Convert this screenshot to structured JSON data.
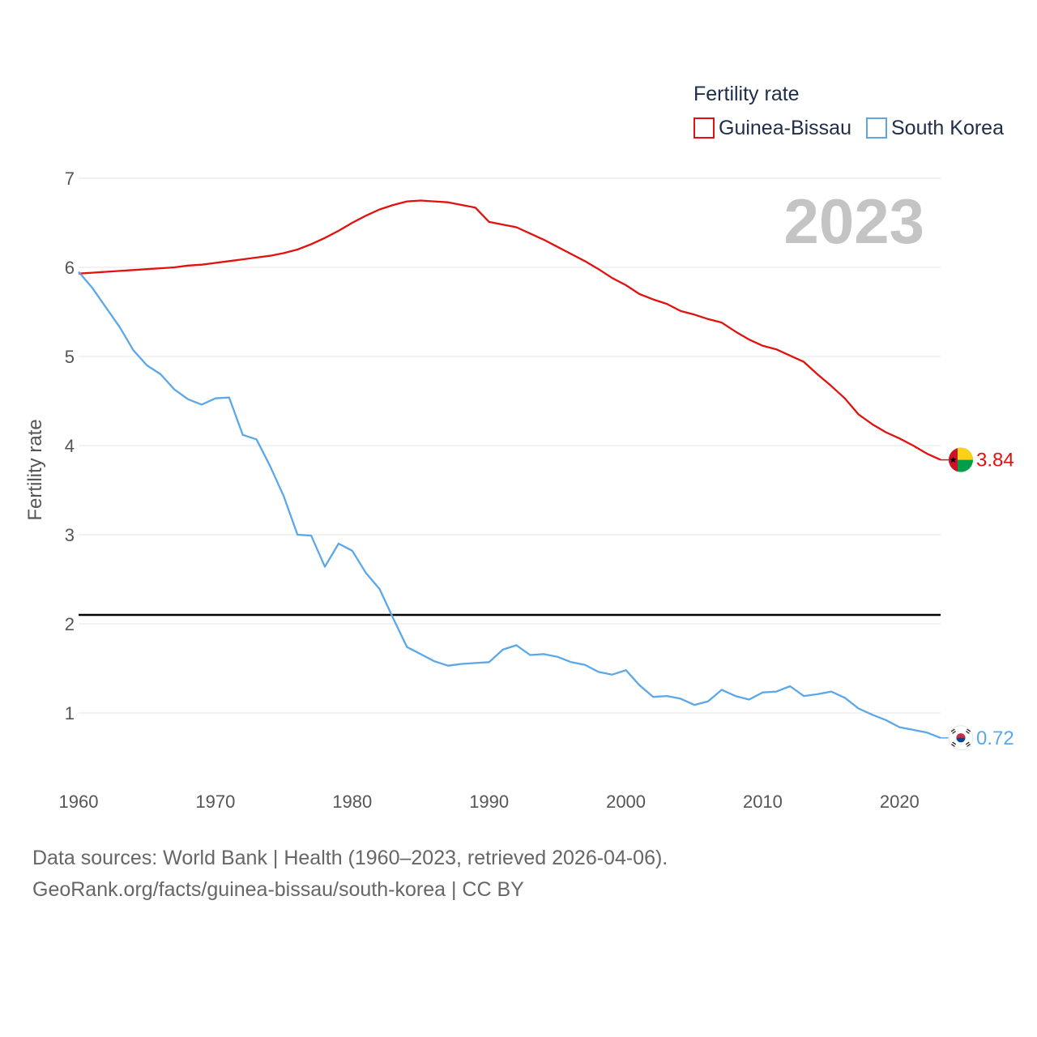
{
  "chart_data": {
    "type": "line",
    "title": "2023",
    "xlabel": "",
    "ylabel": "Fertility rate",
    "legend_title": "Fertility rate",
    "legend_position": "top-right",
    "xlim": [
      1960,
      2023
    ],
    "ylim": [
      0.3,
      7.2
    ],
    "x_ticks": [
      1960,
      1970,
      1980,
      1990,
      2000,
      2010,
      2020
    ],
    "y_ticks": [
      1,
      2,
      3,
      4,
      5,
      6,
      7
    ],
    "reference_line": {
      "y": 2.1,
      "color": "#000000"
    },
    "x": [
      1960,
      1961,
      1962,
      1963,
      1964,
      1965,
      1966,
      1967,
      1968,
      1969,
      1970,
      1971,
      1972,
      1973,
      1974,
      1975,
      1976,
      1977,
      1978,
      1979,
      1980,
      1981,
      1982,
      1983,
      1984,
      1985,
      1986,
      1987,
      1988,
      1989,
      1990,
      1991,
      1992,
      1993,
      1994,
      1995,
      1996,
      1997,
      1998,
      1999,
      2000,
      2001,
      2002,
      2003,
      2004,
      2005,
      2006,
      2007,
      2008,
      2009,
      2010,
      2011,
      2012,
      2013,
      2014,
      2015,
      2016,
      2017,
      2018,
      2019,
      2020,
      2021,
      2022,
      2023
    ],
    "series": [
      {
        "name": "Guinea-Bissau",
        "color": "#e3110e",
        "end_label": "3.84",
        "values": [
          5.93,
          5.94,
          5.95,
          5.96,
          5.97,
          5.98,
          5.99,
          6.0,
          6.02,
          6.03,
          6.05,
          6.07,
          6.09,
          6.11,
          6.13,
          6.16,
          6.2,
          6.26,
          6.33,
          6.41,
          6.5,
          6.58,
          6.65,
          6.7,
          6.74,
          6.75,
          6.74,
          6.73,
          6.7,
          6.67,
          6.51,
          6.48,
          6.45,
          6.38,
          6.31,
          6.23,
          6.15,
          6.07,
          5.98,
          5.88,
          5.8,
          5.7,
          5.64,
          5.59,
          5.51,
          5.47,
          5.42,
          5.38,
          5.28,
          5.19,
          5.12,
          5.08,
          5.01,
          4.94,
          4.8,
          4.67,
          4.53,
          4.35,
          4.24,
          4.15,
          4.08,
          4.0,
          3.91,
          3.84
        ]
      },
      {
        "name": "South Korea",
        "color": "#5ba8e8",
        "end_label": "0.72",
        "values": [
          5.95,
          5.77,
          5.55,
          5.33,
          5.07,
          4.9,
          4.8,
          4.63,
          4.52,
          4.46,
          4.53,
          4.54,
          4.12,
          4.07,
          3.77,
          3.43,
          3.0,
          2.99,
          2.64,
          2.9,
          2.82,
          2.57,
          2.39,
          2.06,
          1.74,
          1.66,
          1.58,
          1.53,
          1.55,
          1.56,
          1.57,
          1.71,
          1.76,
          1.65,
          1.66,
          1.63,
          1.57,
          1.54,
          1.46,
          1.43,
          1.48,
          1.31,
          1.18,
          1.19,
          1.16,
          1.09,
          1.13,
          1.26,
          1.19,
          1.15,
          1.23,
          1.24,
          1.3,
          1.19,
          1.21,
          1.24,
          1.17,
          1.05,
          0.98,
          0.92,
          0.84,
          0.81,
          0.78,
          0.72
        ]
      }
    ]
  },
  "footer": {
    "line1": "Data sources: World Bank | Health (1960–2023, retrieved 2026-04-06).",
    "line2": "GeoRank.org/facts/guinea-bissau/south-korea | CC BY"
  },
  "flags": {
    "guinea_bissau": "guinea-bissau-flag-icon",
    "south_korea": "south-korea-flag-icon"
  }
}
